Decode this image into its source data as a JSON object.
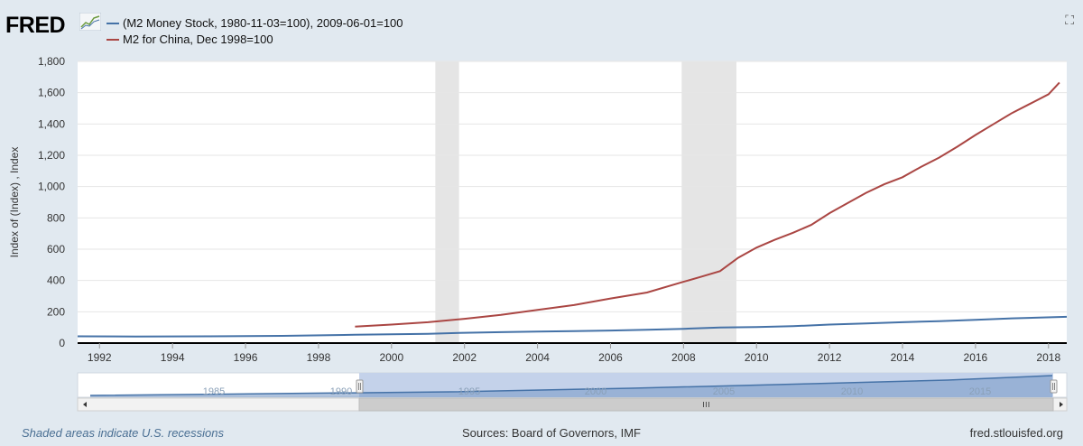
{
  "header": {
    "logo_text": "FRED",
    "logo_icon": "fred-chart-icon",
    "fullscreen_icon": "expand-icon"
  },
  "legend": [
    {
      "label": "(M2 Money Stock, 1980-11-03=100), 2009-06-01=100",
      "color": "#4572a7"
    },
    {
      "label": "M2 for China, Dec 1998=100",
      "color": "#aa4643"
    }
  ],
  "chart_data": {
    "type": "line",
    "ylabel": "Index of (Index) , Index",
    "ylim": [
      0,
      1800
    ],
    "yticks": [
      "0",
      "200",
      "400",
      "600",
      "800",
      "1,000",
      "1,200",
      "1,400",
      "1,600",
      "1,800"
    ],
    "xlim": [
      1991.4,
      2018.5
    ],
    "xticks": [
      "1992",
      "1994",
      "1996",
      "1998",
      "2000",
      "2002",
      "2004",
      "2006",
      "2008",
      "2010",
      "2012",
      "2014",
      "2016",
      "2018"
    ],
    "grid": true,
    "recessions": [
      [
        2001.2,
        2001.85
      ],
      [
        2007.95,
        2009.45
      ]
    ],
    "series": [
      {
        "name": "(M2 Money Stock, 1980-11-03=100), 2009-06-01=100",
        "color": "#4572a7",
        "x": [
          1991.4,
          1993,
          1995,
          1997,
          1999,
          2001,
          2002,
          2003,
          2004,
          2005,
          2006,
          2007,
          2008,
          2009,
          2010,
          2011,
          2012,
          2013,
          2014,
          2015,
          2016,
          2017,
          2018.5
        ],
        "y": [
          43,
          42,
          43,
          46,
          53,
          59,
          66,
          70,
          73,
          76,
          80,
          85,
          91,
          100,
          102,
          108,
          118,
          126,
          133,
          140,
          149,
          158,
          168
        ]
      },
      {
        "name": "M2 for China, Dec 1998=100",
        "color": "#aa4643",
        "x": [
          1999,
          2000,
          2001,
          2002,
          2003,
          2004,
          2005,
          2006,
          2007,
          2008,
          2008.5,
          2009,
          2009.5,
          2010,
          2010.5,
          2011,
          2011.5,
          2012,
          2012.5,
          2013,
          2013.5,
          2014,
          2014.5,
          2015,
          2015.5,
          2016,
          2016.5,
          2017,
          2017.5,
          2018,
          2018.3
        ],
        "y": [
          105,
          118,
          133,
          155,
          180,
          212,
          243,
          285,
          323,
          392,
          425,
          460,
          545,
          610,
          660,
          705,
          755,
          830,
          895,
          960,
          1015,
          1060,
          1125,
          1185,
          1255,
          1330,
          1400,
          1470,
          1530,
          1590,
          1665
        ]
      }
    ]
  },
  "navigator": {
    "tick_labels": [
      "1985",
      "1990",
      "1995",
      "2000",
      "2005",
      "2010",
      "2015"
    ],
    "scroll_left_icon": "arrow-left-icon",
    "scroll_right_icon": "arrow-right-icon",
    "scroll_grip_icon": "grip-icon"
  },
  "footer": {
    "note": "Shaded areas indicate U.S. recessions",
    "sources": "Sources: Board of Governors, IMF",
    "site": "fred.stlouisfed.org"
  }
}
